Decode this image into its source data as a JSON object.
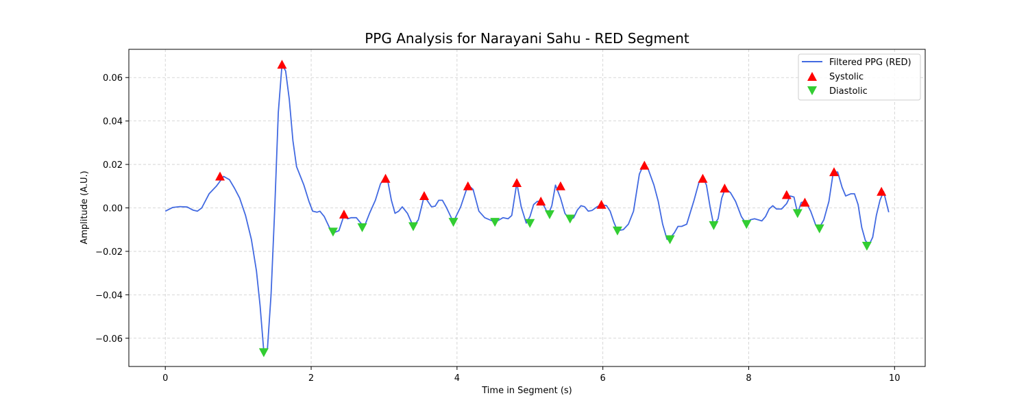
{
  "chart_data": {
    "type": "line",
    "title": "PPG Analysis for Narayani Sahu - RED Segment",
    "xlabel": "Time in Segment (s)",
    "ylabel": "Amplitude (A.U.)",
    "xlim": [
      -0.5,
      10.42
    ],
    "ylim": [
      -0.073,
      0.073
    ],
    "xticks": [
      0,
      2,
      4,
      6,
      8,
      10
    ],
    "xtick_labels": [
      "0",
      "2",
      "4",
      "6",
      "8",
      "10"
    ],
    "yticks": [
      -0.06,
      -0.04,
      -0.02,
      0.0,
      0.02,
      0.04,
      0.06
    ],
    "ytick_labels": [
      "−0.06",
      "−0.04",
      "−0.02",
      "0.00",
      "0.02",
      "0.04",
      "0.06"
    ],
    "grid": true,
    "legend_position": "top-right",
    "colors": {
      "line": "#4169e1",
      "systolic": "#ff0000",
      "diastolic": "#32cd32",
      "grid": "#cccccc"
    },
    "series": [
      {
        "name": "Filtered PPG (RED)",
        "kind": "line",
        "x": [
          0.0,
          0.1,
          0.2,
          0.3,
          0.38,
          0.44,
          0.5,
          0.6,
          0.7,
          0.8,
          0.88,
          0.95,
          1.02,
          1.1,
          1.18,
          1.25,
          1.3,
          1.35,
          1.4,
          1.45,
          1.5,
          1.55,
          1.6,
          1.65,
          1.7,
          1.75,
          1.8,
          1.9,
          1.97,
          2.02,
          2.08,
          2.12,
          2.18,
          2.25,
          2.3,
          2.38,
          2.45,
          2.5,
          2.55,
          2.62,
          2.68,
          2.73,
          2.8,
          2.88,
          2.95,
          3.0,
          3.05,
          3.1,
          3.15,
          3.2,
          3.25,
          3.32,
          3.4,
          3.47,
          3.55,
          3.6,
          3.65,
          3.7,
          3.75,
          3.8,
          3.85,
          3.95,
          4.05,
          4.15,
          4.22,
          4.3,
          4.38,
          4.45,
          4.52,
          4.58,
          4.63,
          4.7,
          4.75,
          4.82,
          4.88,
          4.95,
          5.0,
          5.05,
          5.1,
          5.15,
          5.2,
          5.25,
          5.3,
          5.35,
          5.42,
          5.48,
          5.55,
          5.6,
          5.65,
          5.7,
          5.75,
          5.8,
          5.85,
          5.92,
          5.98,
          6.05,
          6.1,
          6.15,
          6.2,
          6.28,
          6.35,
          6.42,
          6.5,
          6.56,
          6.62,
          6.7,
          6.76,
          6.82,
          6.88,
          6.93,
          6.98,
          7.03,
          7.08,
          7.15,
          7.25,
          7.32,
          7.38,
          7.42,
          7.47,
          7.52,
          7.58,
          7.63,
          7.68,
          7.75,
          7.82,
          7.9,
          7.97,
          8.02,
          8.08,
          8.13,
          8.18,
          8.23,
          8.28,
          8.33,
          8.38,
          8.45,
          8.52,
          8.57,
          8.62,
          8.67,
          8.72,
          8.78,
          8.85,
          8.92,
          8.97,
          9.03,
          9.1,
          9.16,
          9.22,
          9.28,
          9.33,
          9.4,
          9.45,
          9.5,
          9.55,
          9.6,
          9.65,
          9.7,
          9.75,
          9.8,
          9.85,
          9.92
        ],
        "y": [
          -0.0015,
          0.0002,
          0.0006,
          0.0004,
          -0.001,
          -0.0015,
          0.0,
          0.0065,
          0.01,
          0.0145,
          0.013,
          0.009,
          0.0045,
          -0.0035,
          -0.0145,
          -0.029,
          -0.045,
          -0.066,
          -0.065,
          -0.04,
          -0.001,
          0.044,
          0.066,
          0.063,
          0.05,
          0.031,
          0.019,
          0.0105,
          0.003,
          -0.0015,
          -0.002,
          -0.0015,
          -0.004,
          -0.009,
          -0.0115,
          -0.0105,
          -0.0035,
          -0.005,
          -0.0045,
          -0.0045,
          -0.007,
          -0.0085,
          -0.0025,
          0.0035,
          0.011,
          0.0135,
          0.0125,
          0.0035,
          -0.0025,
          -0.0015,
          0.0005,
          -0.0025,
          -0.0085,
          -0.0055,
          0.0055,
          0.003,
          0.0005,
          0.0008,
          0.0035,
          0.0035,
          0.0005,
          -0.0065,
          0.0005,
          0.0105,
          0.0085,
          -0.0015,
          -0.0045,
          -0.0055,
          -0.0065,
          -0.0055,
          -0.0045,
          -0.005,
          -0.0035,
          0.0115,
          0.0005,
          -0.007,
          -0.004,
          0.0015,
          0.003,
          0.003,
          0.0005,
          -0.003,
          0.001,
          0.0105,
          0.0045,
          -0.0025,
          -0.0055,
          -0.0045,
          -0.001,
          0.001,
          0.0005,
          -0.0015,
          -0.0012,
          0.0005,
          0.0015,
          0.001,
          -0.0015,
          -0.0065,
          -0.0105,
          -0.01,
          -0.0075,
          -0.0015,
          0.0155,
          0.02,
          0.018,
          0.0105,
          0.003,
          -0.0075,
          -0.0145,
          -0.0135,
          -0.0115,
          -0.0085,
          -0.0085,
          -0.0075,
          0.0035,
          0.012,
          0.0135,
          0.0105,
          0.0005,
          -0.008,
          -0.005,
          0.0045,
          0.009,
          0.007,
          0.003,
          -0.004,
          -0.0075,
          -0.0055,
          -0.005,
          -0.0055,
          -0.006,
          -0.004,
          -0.0005,
          0.001,
          -0.0005,
          -0.0005,
          0.002,
          0.0055,
          0.005,
          -0.0025,
          0.0025,
          0.003,
          -0.0015,
          -0.008,
          -0.009,
          -0.0055,
          0.003,
          0.0165,
          0.0165,
          0.0095,
          0.0055,
          0.0065,
          0.0065,
          0.0015,
          -0.009,
          -0.015,
          -0.017,
          -0.0135,
          -0.0035,
          0.0035,
          0.0075,
          -0.002
        ]
      },
      {
        "name": "Systolic",
        "kind": "scatter",
        "marker": "triangle-up",
        "x": [
          0.75,
          1.6,
          2.45,
          3.02,
          3.55,
          4.15,
          4.82,
          5.15,
          5.42,
          5.98,
          6.57,
          7.37,
          7.67,
          8.52,
          8.77,
          9.17,
          9.82
        ],
        "y": [
          0.0145,
          0.066,
          -0.003,
          0.0135,
          0.0055,
          0.01,
          0.0115,
          0.003,
          0.01,
          0.0015,
          0.0195,
          0.0135,
          0.009,
          0.006,
          0.0025,
          0.0165,
          0.0075
        ]
      },
      {
        "name": "Diastolic",
        "kind": "scatter",
        "marker": "triangle-down",
        "x": [
          1.35,
          2.3,
          2.7,
          3.4,
          3.95,
          4.52,
          5.0,
          5.27,
          5.55,
          6.2,
          6.92,
          7.52,
          7.97,
          8.67,
          8.97,
          9.62
        ],
        "y": [
          -0.0665,
          -0.011,
          -0.009,
          -0.0085,
          -0.0065,
          -0.0065,
          -0.007,
          -0.003,
          -0.005,
          -0.0105,
          -0.0145,
          -0.008,
          -0.0075,
          -0.0025,
          -0.0095,
          -0.0175
        ]
      }
    ]
  }
}
